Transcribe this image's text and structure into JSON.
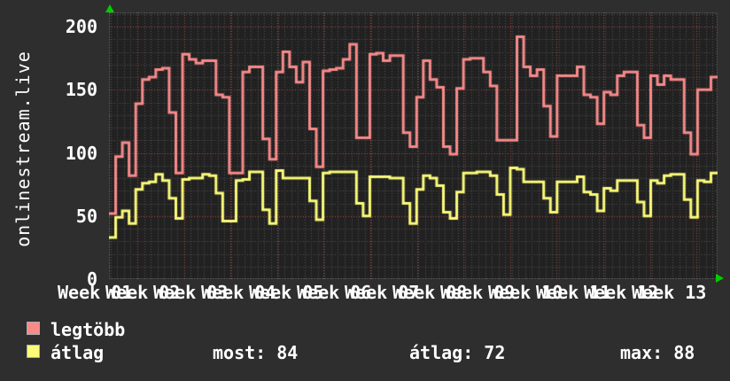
{
  "title_vertical": "onlinestream.live",
  "chart_data": {
    "type": "line",
    "style": "step",
    "title": "",
    "xlabel": "",
    "ylabel": "",
    "ylim": [
      0,
      211
    ],
    "y_ticks": [
      0,
      50,
      100,
      150,
      200
    ],
    "y_minor_step": 10,
    "grid": true,
    "x_labels": [
      "Week 01",
      "Week 02",
      "Week 03",
      "Week 04",
      "Week 05",
      "Week 06",
      "Week 07",
      "Week 08",
      "Week 09",
      "Week 10",
      "Week 11",
      "Week 12",
      "Week 13"
    ],
    "legend_position": "bottom-left",
    "series": [
      {
        "name": "legtöbb",
        "color": "#f98a8a",
        "values": [
          52,
          97,
          108,
          82,
          139,
          158,
          160,
          166,
          167,
          132,
          84,
          178,
          174,
          171,
          173,
          173,
          146,
          144,
          84,
          84,
          164,
          168,
          168,
          111,
          95,
          164,
          180,
          168,
          156,
          172,
          119,
          89,
          165,
          166,
          167,
          174,
          186,
          112,
          112,
          178,
          179,
          173,
          177,
          177,
          116,
          105,
          144,
          173,
          158,
          152,
          105,
          99,
          151,
          174,
          175,
          175,
          164,
          153,
          110,
          110,
          110,
          192,
          168,
          161,
          166,
          137,
          113,
          161,
          161,
          161,
          168,
          146,
          144,
          123,
          148,
          146,
          161,
          164,
          164,
          122,
          112,
          161,
          154,
          161,
          158,
          158,
          116,
          99,
          150,
          150,
          160
        ]
      },
      {
        "name": "átlag",
        "color": "#fbfb78",
        "values": [
          33,
          49,
          54,
          44,
          71,
          76,
          77,
          83,
          78,
          64,
          48,
          79,
          80,
          80,
          83,
          82,
          68,
          46,
          46,
          78,
          79,
          85,
          85,
          55,
          44,
          86,
          80,
          80,
          80,
          80,
          62,
          47,
          84,
          85,
          85,
          85,
          85,
          60,
          50,
          81,
          81,
          81,
          80,
          80,
          60,
          44,
          71,
          82,
          80,
          74,
          53,
          48,
          69,
          84,
          84,
          85,
          85,
          82,
          67,
          51,
          88,
          87,
          77,
          77,
          77,
          64,
          53,
          77,
          77,
          77,
          81,
          69,
          67,
          54,
          72,
          70,
          78,
          78,
          78,
          61,
          50,
          78,
          76,
          82,
          83,
          83,
          63,
          49,
          78,
          77,
          84
        ]
      }
    ]
  },
  "legend": {
    "row1_label": "legtöbb",
    "row2_label": "átlag"
  },
  "stats": {
    "most": "most: 84",
    "atlag": "átlag: 72",
    "max": "max: 88"
  },
  "colors": {
    "page_bg": "#2e2e2e",
    "plot_bg": "#212121",
    "minor_grid": "#4e4e4e",
    "major_grid_red": "#b04848",
    "axis_dotted": "#8a8a8a",
    "arrow_green": "#00cc00",
    "text": "#ffffff"
  }
}
